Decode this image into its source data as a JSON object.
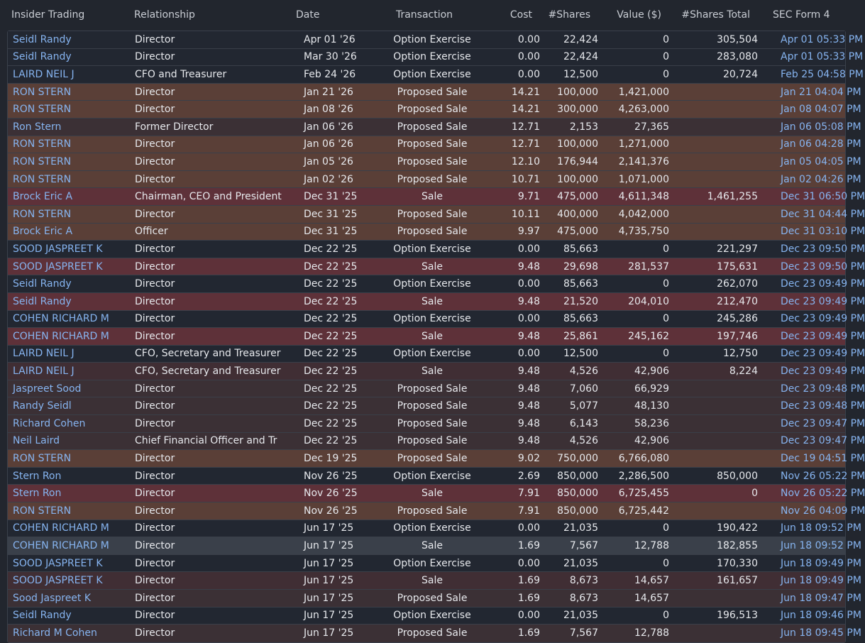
{
  "columns": {
    "insider": "Insider Trading",
    "relationship": "Relationship",
    "date": "Date",
    "transaction": "Transaction",
    "cost": "Cost",
    "shares": "#Shares",
    "value": "Value ($)",
    "total": "#Shares Total",
    "form": "SEC Form 4"
  },
  "rows": [
    {
      "insider": "Seidl Randy",
      "relationship": "Director",
      "date": "Apr 01 '26",
      "transaction": "Option Exercise",
      "cost": "0.00",
      "shares": "22,424",
      "value": "0",
      "total": "305,504",
      "form": "Apr 01 05:33 PM",
      "tone": "option"
    },
    {
      "insider": "Seidl Randy",
      "relationship": "Director",
      "date": "Mar 30 '26",
      "transaction": "Option Exercise",
      "cost": "0.00",
      "shares": "22,424",
      "value": "0",
      "total": "283,080",
      "form": "Apr 01 05:33 PM",
      "tone": "option"
    },
    {
      "insider": "LAIRD NEIL J",
      "relationship": "CFO and Treasurer",
      "date": "Feb 24 '26",
      "transaction": "Option Exercise",
      "cost": "0.00",
      "shares": "12,500",
      "value": "0",
      "total": "20,724",
      "form": "Feb 25 04:58 PM",
      "tone": "option"
    },
    {
      "insider": "RON STERN",
      "relationship": "Director",
      "date": "Jan 21 '26",
      "transaction": "Proposed Sale",
      "cost": "14.21",
      "shares": "100,000",
      "value": "1,421,000",
      "total": "",
      "form": "Jan 21 04:04 PM",
      "tone": "proposed"
    },
    {
      "insider": "RON STERN",
      "relationship": "Director",
      "date": "Jan 08 '26",
      "transaction": "Proposed Sale",
      "cost": "14.21",
      "shares": "300,000",
      "value": "4,263,000",
      "total": "",
      "form": "Jan 08 04:07 PM",
      "tone": "proposed"
    },
    {
      "insider": "Ron Stern",
      "relationship": "Former Director",
      "date": "Jan 06 '26",
      "transaction": "Proposed Sale",
      "cost": "12.71",
      "shares": "2,153",
      "value": "27,365",
      "total": "",
      "form": "Jan 06 05:08 PM",
      "tone": "proposed-dim"
    },
    {
      "insider": "RON STERN",
      "relationship": "Director",
      "date": "Jan 06 '26",
      "transaction": "Proposed Sale",
      "cost": "12.71",
      "shares": "100,000",
      "value": "1,271,000",
      "total": "",
      "form": "Jan 06 04:28 PM",
      "tone": "proposed"
    },
    {
      "insider": "RON STERN",
      "relationship": "Director",
      "date": "Jan 05 '26",
      "transaction": "Proposed Sale",
      "cost": "12.10",
      "shares": "176,944",
      "value": "2,141,376",
      "total": "",
      "form": "Jan 05 04:05 PM",
      "tone": "proposed"
    },
    {
      "insider": "RON STERN",
      "relationship": "Director",
      "date": "Jan 02 '26",
      "transaction": "Proposed Sale",
      "cost": "10.71",
      "shares": "100,000",
      "value": "1,071,000",
      "total": "",
      "form": "Jan 02 04:26 PM",
      "tone": "proposed"
    },
    {
      "insider": "Brock Eric A",
      "relationship": "Chairman, CEO and President",
      "date": "Dec 31 '25",
      "transaction": "Sale",
      "cost": "9.71",
      "shares": "475,000",
      "value": "4,611,348",
      "total": "1,461,255",
      "form": "Dec 31 06:50 PM",
      "tone": "sale"
    },
    {
      "insider": "RON STERN",
      "relationship": "Director",
      "date": "Dec 31 '25",
      "transaction": "Proposed Sale",
      "cost": "10.11",
      "shares": "400,000",
      "value": "4,042,000",
      "total": "",
      "form": "Dec 31 04:44 PM",
      "tone": "proposed"
    },
    {
      "insider": "Brock Eric A",
      "relationship": "Officer",
      "date": "Dec 31 '25",
      "transaction": "Proposed Sale",
      "cost": "9.97",
      "shares": "475,000",
      "value": "4,735,750",
      "total": "",
      "form": "Dec 31 03:10 PM",
      "tone": "proposed"
    },
    {
      "insider": "SOOD JASPREET K",
      "relationship": "Director",
      "date": "Dec 22 '25",
      "transaction": "Option Exercise",
      "cost": "0.00",
      "shares": "85,663",
      "value": "0",
      "total": "221,297",
      "form": "Dec 23 09:50 PM",
      "tone": "option"
    },
    {
      "insider": "SOOD JASPREET K",
      "relationship": "Director",
      "date": "Dec 22 '25",
      "transaction": "Sale",
      "cost": "9.48",
      "shares": "29,698",
      "value": "281,537",
      "total": "175,631",
      "form": "Dec 23 09:50 PM",
      "tone": "sale"
    },
    {
      "insider": "Seidl Randy",
      "relationship": "Director",
      "date": "Dec 22 '25",
      "transaction": "Option Exercise",
      "cost": "0.00",
      "shares": "85,663",
      "value": "0",
      "total": "262,070",
      "form": "Dec 23 09:49 PM",
      "tone": "option"
    },
    {
      "insider": "Seidl Randy",
      "relationship": "Director",
      "date": "Dec 22 '25",
      "transaction": "Sale",
      "cost": "9.48",
      "shares": "21,520",
      "value": "204,010",
      "total": "212,470",
      "form": "Dec 23 09:49 PM",
      "tone": "sale"
    },
    {
      "insider": "COHEN RICHARD M",
      "relationship": "Director",
      "date": "Dec 22 '25",
      "transaction": "Option Exercise",
      "cost": "0.00",
      "shares": "85,663",
      "value": "0",
      "total": "245,286",
      "form": "Dec 23 09:49 PM",
      "tone": "option"
    },
    {
      "insider": "COHEN RICHARD M",
      "relationship": "Director",
      "date": "Dec 22 '25",
      "transaction": "Sale",
      "cost": "9.48",
      "shares": "25,861",
      "value": "245,162",
      "total": "197,746",
      "form": "Dec 23 09:49 PM",
      "tone": "sale"
    },
    {
      "insider": "LAIRD NEIL J",
      "relationship": "CFO, Secretary and Treasurer",
      "date": "Dec 22 '25",
      "transaction": "Option Exercise",
      "cost": "0.00",
      "shares": "12,500",
      "value": "0",
      "total": "12,750",
      "form": "Dec 23 09:49 PM",
      "tone": "option"
    },
    {
      "insider": "LAIRD NEIL J",
      "relationship": "CFO, Secretary and Treasurer",
      "date": "Dec 22 '25",
      "transaction": "Sale",
      "cost": "9.48",
      "shares": "4,526",
      "value": "42,906",
      "total": "8,224",
      "form": "Dec 23 09:49 PM",
      "tone": "sale-dim"
    },
    {
      "insider": "Jaspreet Sood",
      "relationship": "Director",
      "date": "Dec 22 '25",
      "transaction": "Proposed Sale",
      "cost": "9.48",
      "shares": "7,060",
      "value": "66,929",
      "total": "",
      "form": "Dec 23 09:48 PM",
      "tone": "proposed-dim"
    },
    {
      "insider": "Randy Seidl",
      "relationship": "Director",
      "date": "Dec 22 '25",
      "transaction": "Proposed Sale",
      "cost": "9.48",
      "shares": "5,077",
      "value": "48,130",
      "total": "",
      "form": "Dec 23 09:48 PM",
      "tone": "proposed-dim"
    },
    {
      "insider": "Richard Cohen",
      "relationship": "Director",
      "date": "Dec 22 '25",
      "transaction": "Proposed Sale",
      "cost": "9.48",
      "shares": "6,143",
      "value": "58,236",
      "total": "",
      "form": "Dec 23 09:47 PM",
      "tone": "proposed-dim"
    },
    {
      "insider": "Neil Laird",
      "relationship": "Chief Financial Officer and Tr",
      "date": "Dec 22 '25",
      "transaction": "Proposed Sale",
      "cost": "9.48",
      "shares": "4,526",
      "value": "42,906",
      "total": "",
      "form": "Dec 23 09:47 PM",
      "tone": "proposed-dim"
    },
    {
      "insider": "RON STERN",
      "relationship": "Director",
      "date": "Dec 19 '25",
      "transaction": "Proposed Sale",
      "cost": "9.02",
      "shares": "750,000",
      "value": "6,766,080",
      "total": "",
      "form": "Dec 19 04:51 PM",
      "tone": "proposed"
    },
    {
      "insider": "Stern Ron",
      "relationship": "Director",
      "date": "Nov 26 '25",
      "transaction": "Option Exercise",
      "cost": "2.69",
      "shares": "850,000",
      "value": "2,286,500",
      "total": "850,000",
      "form": "Nov 26 05:22 PM",
      "tone": "option"
    },
    {
      "insider": "Stern Ron",
      "relationship": "Director",
      "date": "Nov 26 '25",
      "transaction": "Sale",
      "cost": "7.91",
      "shares": "850,000",
      "value": "6,725,455",
      "total": "0",
      "form": "Nov 26 05:22 PM",
      "tone": "sale"
    },
    {
      "insider": "RON STERN",
      "relationship": "Director",
      "date": "Nov 26 '25",
      "transaction": "Proposed Sale",
      "cost": "7.91",
      "shares": "850,000",
      "value": "6,725,442",
      "total": "",
      "form": "Nov 26 04:09 PM",
      "tone": "proposed"
    },
    {
      "insider": "COHEN RICHARD M",
      "relationship": "Director",
      "date": "Jun 17 '25",
      "transaction": "Option Exercise",
      "cost": "0.00",
      "shares": "21,035",
      "value": "0",
      "total": "190,422",
      "form": "Jun 18 09:52 PM",
      "tone": "option"
    },
    {
      "insider": "COHEN RICHARD M",
      "relationship": "Director",
      "date": "Jun 17 '25",
      "transaction": "Sale",
      "cost": "1.69",
      "shares": "7,567",
      "value": "12,788",
      "total": "182,855",
      "form": "Jun 18 09:52 PM",
      "tone": "selected"
    },
    {
      "insider": "SOOD JASPREET K",
      "relationship": "Director",
      "date": "Jun 17 '25",
      "transaction": "Option Exercise",
      "cost": "0.00",
      "shares": "21,035",
      "value": "0",
      "total": "170,330",
      "form": "Jun 18 09:49 PM",
      "tone": "option"
    },
    {
      "insider": "SOOD JASPREET K",
      "relationship": "Director",
      "date": "Jun 17 '25",
      "transaction": "Sale",
      "cost": "1.69",
      "shares": "8,673",
      "value": "14,657",
      "total": "161,657",
      "form": "Jun 18 09:49 PM",
      "tone": "sale-dim"
    },
    {
      "insider": "Sood Jaspreet K",
      "relationship": "Director",
      "date": "Jun 17 '25",
      "transaction": "Proposed Sale",
      "cost": "1.69",
      "shares": "8,673",
      "value": "14,657",
      "total": "",
      "form": "Jun 18 09:47 PM",
      "tone": "proposed-dim"
    },
    {
      "insider": "Seidl Randy",
      "relationship": "Director",
      "date": "Jun 17 '25",
      "transaction": "Option Exercise",
      "cost": "0.00",
      "shares": "21,035",
      "value": "0",
      "total": "196,513",
      "form": "Jun 18 09:46 PM",
      "tone": "option"
    },
    {
      "insider": "Richard M Cohen",
      "relationship": "Director",
      "date": "Jun 17 '25",
      "transaction": "Proposed Sale",
      "cost": "1.69",
      "shares": "7,567",
      "value": "12,788",
      "total": "",
      "form": "Jun 18 09:45 PM",
      "tone": "proposed-dim"
    }
  ]
}
